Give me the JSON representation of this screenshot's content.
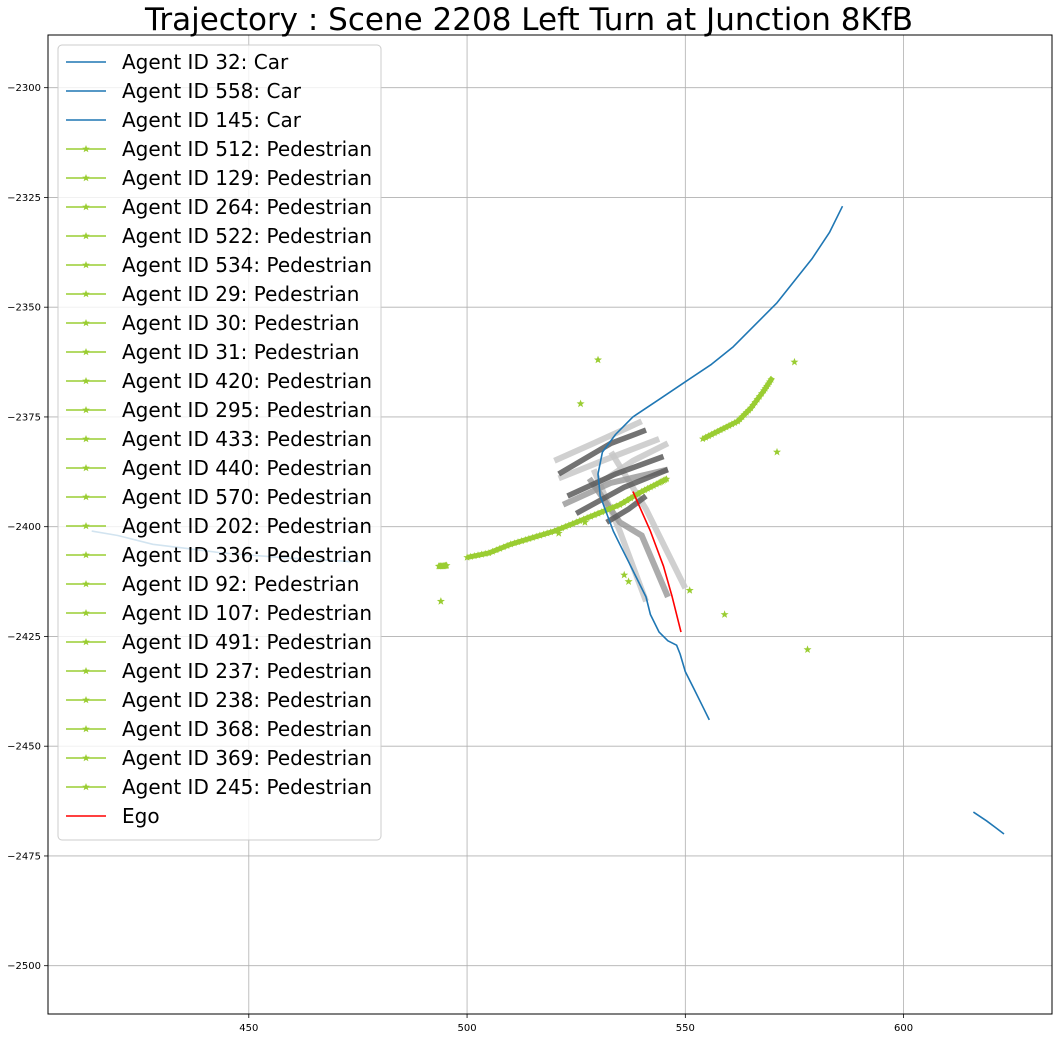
{
  "chart_data": {
    "type": "line",
    "title": "Trajectory : Scene 2208 Left Turn at Junction 8KfB",
    "xlabel": "",
    "ylabel": "",
    "xlim": [
      404,
      634
    ],
    "ylim": [
      -2511,
      -2288
    ],
    "x_ticks": [
      450,
      500,
      550,
      600
    ],
    "y_ticks": [
      -2300,
      -2325,
      -2350,
      -2375,
      -2400,
      -2425,
      -2450,
      -2475,
      -2500
    ],
    "grid": true,
    "legend_position": "upper-left",
    "colors": {
      "car": "#1f77b4",
      "pedestrian": "#9acd32",
      "ego": "#ff0000",
      "lane_light": "#c8c8c8",
      "lane_mid": "#969696",
      "lane_dark": "#5a5a5a"
    },
    "legend": [
      {
        "label": "Agent ID 32: Car",
        "kind": "car"
      },
      {
        "label": "Agent ID 558: Car",
        "kind": "car"
      },
      {
        "label": "Agent ID 145: Car",
        "kind": "car"
      },
      {
        "label": "Agent ID 512: Pedestrian",
        "kind": "pedestrian"
      },
      {
        "label": "Agent ID 129: Pedestrian",
        "kind": "pedestrian"
      },
      {
        "label": "Agent ID 264: Pedestrian",
        "kind": "pedestrian"
      },
      {
        "label": "Agent ID 522: Pedestrian",
        "kind": "pedestrian"
      },
      {
        "label": "Agent ID 534: Pedestrian",
        "kind": "pedestrian"
      },
      {
        "label": "Agent ID 29: Pedestrian",
        "kind": "pedestrian"
      },
      {
        "label": "Agent ID 30: Pedestrian",
        "kind": "pedestrian"
      },
      {
        "label": "Agent ID 31: Pedestrian",
        "kind": "pedestrian"
      },
      {
        "label": "Agent ID 420: Pedestrian",
        "kind": "pedestrian"
      },
      {
        "label": "Agent ID 295: Pedestrian",
        "kind": "pedestrian"
      },
      {
        "label": "Agent ID 433: Pedestrian",
        "kind": "pedestrian"
      },
      {
        "label": "Agent ID 440: Pedestrian",
        "kind": "pedestrian"
      },
      {
        "label": "Agent ID 570: Pedestrian",
        "kind": "pedestrian"
      },
      {
        "label": "Agent ID 202: Pedestrian",
        "kind": "pedestrian"
      },
      {
        "label": "Agent ID 336: Pedestrian",
        "kind": "pedestrian"
      },
      {
        "label": "Agent ID 92: Pedestrian",
        "kind": "pedestrian"
      },
      {
        "label": "Agent ID 107: Pedestrian",
        "kind": "pedestrian"
      },
      {
        "label": "Agent ID 491: Pedestrian",
        "kind": "pedestrian"
      },
      {
        "label": "Agent ID 237: Pedestrian",
        "kind": "pedestrian"
      },
      {
        "label": "Agent ID 238: Pedestrian",
        "kind": "pedestrian"
      },
      {
        "label": "Agent ID 368: Pedestrian",
        "kind": "pedestrian"
      },
      {
        "label": "Agent ID 369: Pedestrian",
        "kind": "pedestrian"
      },
      {
        "label": "Agent ID 245: Pedestrian",
        "kind": "pedestrian"
      },
      {
        "label": "Ego",
        "kind": "ego"
      }
    ],
    "car_series": [
      {
        "points": [
          [
            586,
            -2327
          ],
          [
            583,
            -2333
          ],
          [
            579,
            -2339
          ],
          [
            575,
            -2344
          ],
          [
            571,
            -2349
          ],
          [
            566,
            -2354
          ],
          [
            561,
            -2359
          ],
          [
            556,
            -2363
          ],
          [
            550,
            -2367
          ],
          [
            544,
            -2371
          ],
          [
            538,
            -2375
          ],
          [
            534,
            -2379
          ],
          [
            531,
            -2383
          ],
          [
            530,
            -2388
          ],
          [
            530.5,
            -2393
          ],
          [
            532,
            -2397
          ],
          [
            533.5,
            -2401
          ],
          [
            535,
            -2404
          ],
          [
            537,
            -2408
          ],
          [
            539,
            -2412
          ],
          [
            541,
            -2416
          ],
          [
            542,
            -2420
          ],
          [
            544,
            -2424
          ],
          [
            546,
            -2426
          ],
          [
            548,
            -2427
          ],
          [
            548.8,
            -2429
          ],
          [
            550,
            -2433
          ],
          [
            552,
            -2437
          ],
          [
            554,
            -2441
          ],
          [
            555.5,
            -2444
          ]
        ]
      },
      {
        "points": [
          [
            414,
            -2401
          ],
          [
            420,
            -2402
          ],
          [
            428,
            -2404
          ],
          [
            436,
            -2405
          ],
          [
            444,
            -2406
          ],
          [
            452,
            -2406.6
          ],
          [
            460,
            -2407.2
          ],
          [
            468,
            -2407.6
          ],
          [
            474,
            -2408
          ]
        ]
      },
      {
        "points": [
          [
            616,
            -2465
          ],
          [
            619,
            -2467
          ],
          [
            621,
            -2468.5
          ],
          [
            623,
            -2470
          ]
        ]
      }
    ],
    "ego_series": {
      "points": [
        [
          538,
          -2392
        ],
        [
          542,
          -2401
        ],
        [
          545,
          -2409
        ],
        [
          547,
          -2416
        ],
        [
          549,
          -2424
        ]
      ]
    },
    "pedestrian_tracks": [
      [
        [
          500,
          -2407
        ],
        [
          505,
          -2406
        ],
        [
          510,
          -2404
        ],
        [
          515,
          -2402.5
        ],
        [
          520,
          -2401
        ],
        [
          525,
          -2399
        ],
        [
          530,
          -2397
        ],
        [
          535,
          -2395
        ],
        [
          540,
          -2392
        ],
        [
          544,
          -2390
        ],
        [
          546,
          -2389
        ]
      ],
      [
        [
          554,
          -2380
        ],
        [
          558,
          -2378
        ],
        [
          562,
          -2376
        ],
        [
          565,
          -2373
        ],
        [
          568,
          -2369
        ],
        [
          570,
          -2366
        ]
      ],
      [
        [
          493.5,
          -2409
        ],
        [
          494.5,
          -2409
        ],
        [
          495.5,
          -2408.8
        ]
      ]
    ],
    "pedestrian_points": [
      [
        530,
        -2362
      ],
      [
        526,
        -2372
      ],
      [
        575,
        -2362.5
      ],
      [
        571,
        -2383
      ],
      [
        527,
        -2399
      ],
      [
        521,
        -2401.5
      ],
      [
        536,
        -2411
      ],
      [
        537,
        -2412.5
      ],
      [
        551,
        -2414.5
      ],
      [
        559,
        -2420
      ],
      [
        578,
        -2428
      ],
      [
        494,
        -2417
      ]
    ],
    "lane_segments": [
      {
        "shade": "light",
        "points": [
          [
            520,
            -2385
          ],
          [
            529,
            -2381
          ],
          [
            540,
            -2376
          ]
        ]
      },
      {
        "shade": "light",
        "points": [
          [
            521,
            -2389
          ],
          [
            531,
            -2385
          ],
          [
            544,
            -2380
          ]
        ]
      },
      {
        "shade": "light",
        "points": [
          [
            529,
            -2391
          ],
          [
            538,
            -2385
          ],
          [
            546,
            -2381
          ]
        ]
      },
      {
        "shade": "light",
        "points": [
          [
            533,
            -2383
          ],
          [
            541,
            -2396
          ],
          [
            550,
            -2414
          ]
        ]
      },
      {
        "shade": "light",
        "points": [
          [
            529,
            -2387
          ],
          [
            535,
            -2401
          ],
          [
            541,
            -2417
          ]
        ]
      },
      {
        "shade": "mid",
        "points": [
          [
            528,
            -2389
          ],
          [
            535,
            -2399
          ],
          [
            540,
            -2402
          ],
          [
            546,
            -2416
          ]
        ]
      },
      {
        "shade": "mid",
        "points": [
          [
            522,
            -2395
          ],
          [
            533,
            -2390
          ],
          [
            546,
            -2387
          ]
        ]
      },
      {
        "shade": "dark",
        "points": [
          [
            521,
            -2388
          ],
          [
            533,
            -2381
          ],
          [
            541,
            -2378
          ]
        ]
      },
      {
        "shade": "dark",
        "points": [
          [
            523,
            -2393
          ],
          [
            534,
            -2388
          ],
          [
            545,
            -2384
          ]
        ]
      },
      {
        "shade": "dark",
        "points": [
          [
            525,
            -2397
          ],
          [
            536,
            -2391
          ],
          [
            546,
            -2387
          ]
        ]
      },
      {
        "shade": "dark",
        "points": [
          [
            532,
            -2399
          ],
          [
            537,
            -2396
          ],
          [
            541,
            -2393
          ]
        ]
      }
    ]
  }
}
